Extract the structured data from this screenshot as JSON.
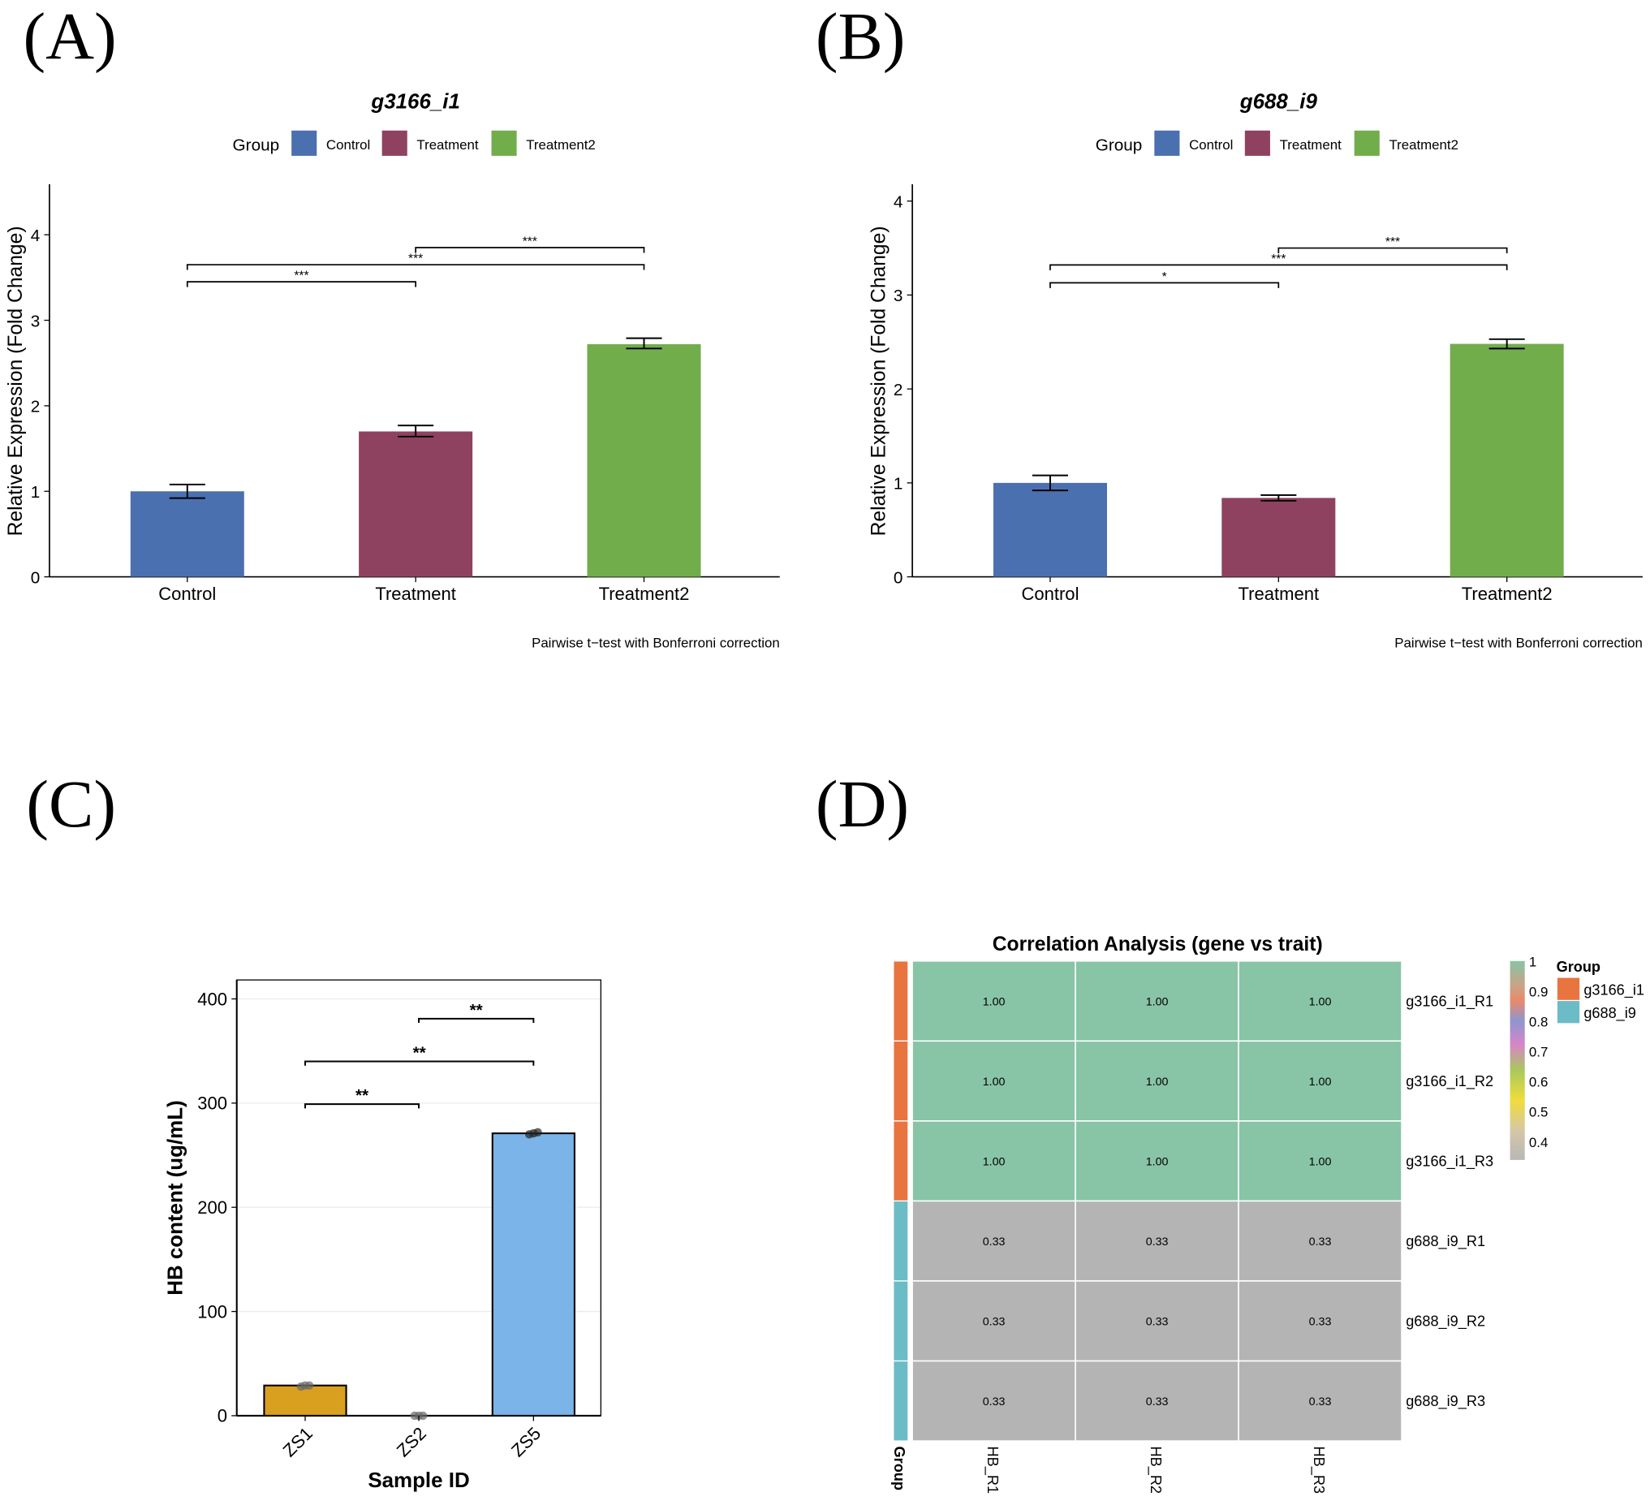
{
  "panel_labels": [
    "(A)",
    "(B)",
    "(C)",
    "(D)"
  ],
  "chart_data": [
    {
      "type": "bar",
      "title": "g3166_i1",
      "legend_title": "Group",
      "legend": [
        "Control",
        "Treatment",
        "Treatment2"
      ],
      "colors": [
        "#4a70b0",
        "#8e4260",
        "#72ad4c"
      ],
      "categories": [
        "Control",
        "Treatment",
        "Treatment2"
      ],
      "values": [
        1.0,
        1.7,
        2.72
      ],
      "error_low": [
        0.92,
        1.64,
        2.67
      ],
      "error_high": [
        1.08,
        1.77,
        2.79
      ],
      "ylabel": "Relative Expression (Fold Change)",
      "xlabel": "",
      "yticks": [
        0,
        1,
        2,
        3,
        4
      ],
      "ylim": [
        0,
        4.5
      ],
      "brackets": [
        {
          "from": 0,
          "to": 1,
          "y": 3.45,
          "label": "***"
        },
        {
          "from": 0,
          "to": 2,
          "y": 3.65,
          "label": "***"
        },
        {
          "from": 1,
          "to": 2,
          "y": 3.85,
          "label": "***"
        }
      ],
      "caption": "Pairwise t−test with Bonferroni correction"
    },
    {
      "type": "bar",
      "title": "g688_i9",
      "legend_title": "Group",
      "legend": [
        "Control",
        "Treatment",
        "Treatment2"
      ],
      "colors": [
        "#4a70b0",
        "#8e4260",
        "#72ad4c"
      ],
      "categories": [
        "Control",
        "Treatment",
        "Treatment2"
      ],
      "values": [
        1.0,
        0.84,
        2.48
      ],
      "error_low": [
        0.92,
        0.81,
        2.43
      ],
      "error_high": [
        1.08,
        0.87,
        2.53
      ],
      "ylabel": "Relative Expression (Fold Change)",
      "xlabel": "",
      "yticks": [
        0,
        1,
        2,
        3,
        4
      ],
      "ylim": [
        0,
        4.15
      ],
      "brackets": [
        {
          "from": 0,
          "to": 1,
          "y": 3.13,
          "label": "*"
        },
        {
          "from": 0,
          "to": 2,
          "y": 3.32,
          "label": "***"
        },
        {
          "from": 1,
          "to": 2,
          "y": 3.5,
          "label": "***"
        }
      ],
      "caption": "Pairwise t−test with Bonferroni correction"
    },
    {
      "type": "bar",
      "title": "",
      "categories": [
        "ZS1",
        "ZS2",
        "ZS5"
      ],
      "values": [
        29,
        0,
        271
      ],
      "colors": [
        "#d9a020",
        "#aaaaaa",
        "#7ab4e8"
      ],
      "points": [
        [
          28,
          29,
          29
        ],
        [
          0,
          0,
          0
        ],
        [
          270,
          271,
          272
        ]
      ],
      "ylabel": "HB content (ug/mL)",
      "xlabel": "Sample ID",
      "yticks": [
        0,
        100,
        200,
        300,
        400
      ],
      "ylim": [
        0,
        418
      ],
      "grid": true,
      "brackets": [
        {
          "from": 0,
          "to": 1,
          "y": 299,
          "label": "**"
        },
        {
          "from": 0,
          "to": 2,
          "y": 340,
          "label": "**"
        },
        {
          "from": 1,
          "to": 2,
          "y": 381,
          "label": "**"
        }
      ]
    },
    {
      "type": "heatmap",
      "title": "Correlation Analysis (gene vs trait)",
      "rows": [
        "g3166_i1_R1",
        "g3166_i1_R2",
        "g3166_i1_R3",
        "g688_i9_R1",
        "g688_i9_R2",
        "g688_i9_R3"
      ],
      "columns": [
        "HB_R1",
        "HB_R2",
        "HB_R3"
      ],
      "values": [
        [
          1.0,
          1.0,
          1.0
        ],
        [
          1.0,
          1.0,
          1.0
        ],
        [
          1.0,
          1.0,
          1.0
        ],
        [
          0.33,
          0.33,
          0.33
        ],
        [
          0.33,
          0.33,
          0.33
        ],
        [
          0.33,
          0.33,
          0.33
        ]
      ],
      "value_labels": [
        [
          "1.00",
          "1.00",
          "1.00"
        ],
        [
          "1.00",
          "1.00",
          "1.00"
        ],
        [
          "1.00",
          "1.00",
          "1.00"
        ],
        [
          "0.33",
          "0.33",
          "0.33"
        ],
        [
          "0.33",
          "0.33",
          "0.33"
        ],
        [
          "0.33",
          "0.33",
          "0.33"
        ]
      ],
      "row_groups": [
        "g3166_i1",
        "g3166_i1",
        "g3166_i1",
        "g688_i9",
        "g688_i9",
        "g688_i9"
      ],
      "group_annotation_label": "Group",
      "group_legend_title": "Group",
      "group_legend": [
        {
          "label": "g3166_i1",
          "color": "#e8743f"
        },
        {
          "label": "g688_i9",
          "color": "#6bbcc6"
        }
      ],
      "high_color": "#88c4a6",
      "low_color": "#b4b4b4",
      "colorbar_ticks": [
        "1",
        "0.9",
        "0.8",
        "0.7",
        "0.6",
        "0.5",
        "0.4"
      ],
      "colorbar_range": [
        0.33,
        1.0
      ]
    }
  ]
}
